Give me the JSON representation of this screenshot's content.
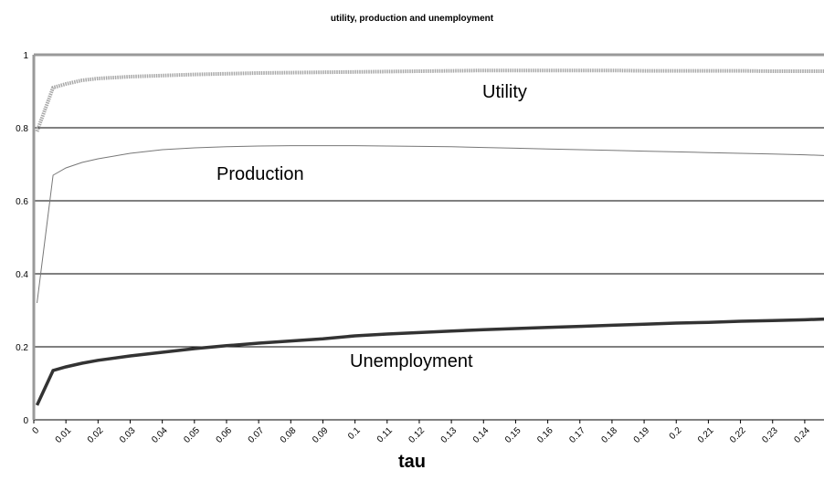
{
  "chart_data": {
    "type": "line",
    "title": "utility, production and unemployment",
    "x_label": "tau",
    "x": [
      0.001,
      0.006,
      0.01,
      0.015,
      0.02,
      0.03,
      0.04,
      0.05,
      0.06,
      0.07,
      0.08,
      0.09,
      0.1,
      0.11,
      0.12,
      0.13,
      0.14,
      0.15,
      0.16,
      0.17,
      0.18,
      0.19,
      0.2,
      0.21,
      0.22,
      0.23,
      0.24,
      0.246
    ],
    "series": [
      {
        "name": "Utility",
        "color": "#a8a8a8",
        "values": [
          0.79,
          0.91,
          0.92,
          0.93,
          0.935,
          0.94,
          0.943,
          0.946,
          0.948,
          0.95,
          0.951,
          0.952,
          0.953,
          0.954,
          0.955,
          0.956,
          0.957,
          0.957,
          0.957,
          0.957,
          0.957,
          0.956,
          0.956,
          0.956,
          0.956,
          0.955,
          0.955,
          0.955
        ]
      },
      {
        "name": "Production",
        "color": "#777777",
        "values": [
          0.32,
          0.67,
          0.69,
          0.705,
          0.715,
          0.73,
          0.74,
          0.745,
          0.748,
          0.75,
          0.751,
          0.751,
          0.751,
          0.75,
          0.749,
          0.748,
          0.746,
          0.744,
          0.742,
          0.74,
          0.738,
          0.736,
          0.734,
          0.732,
          0.73,
          0.728,
          0.726,
          0.724
        ]
      },
      {
        "name": "Unemployment",
        "color": "#333333",
        "values": [
          0.04,
          0.135,
          0.145,
          0.155,
          0.163,
          0.175,
          0.185,
          0.195,
          0.203,
          0.21,
          0.216,
          0.222,
          0.23,
          0.235,
          0.239,
          0.243,
          0.247,
          0.25,
          0.253,
          0.256,
          0.259,
          0.262,
          0.265,
          0.267,
          0.27,
          0.272,
          0.274,
          0.276
        ]
      }
    ],
    "xlim": [
      0,
      0.246
    ],
    "xticks": [
      0,
      0.01,
      0.02,
      0.03,
      0.04,
      0.05,
      0.06,
      0.07,
      0.08,
      0.09,
      0.1,
      0.11,
      0.12,
      0.13,
      0.14,
      0.15,
      0.16,
      0.17,
      0.18,
      0.19,
      0.2,
      0.21,
      0.22,
      0.23,
      0.24
    ],
    "ylim": [
      0,
      1
    ],
    "yticks": [
      0,
      0.2,
      0.4,
      0.6,
      0.8,
      1
    ],
    "grid": true
  }
}
